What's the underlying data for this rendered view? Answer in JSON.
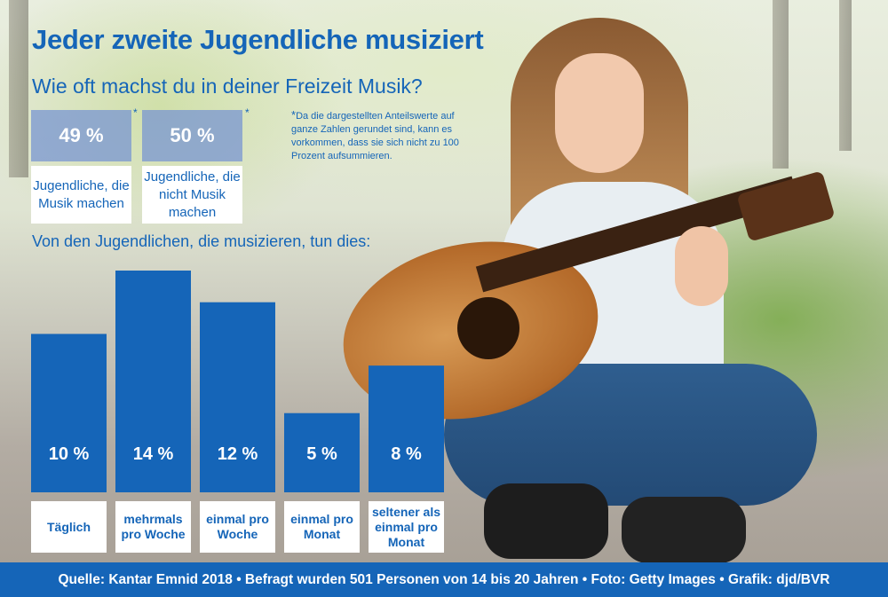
{
  "title": "Jeder zweite Jugendliche musiziert",
  "subtitle": "Wie oft machst du in deiner Freizeit Musik?",
  "summary": [
    {
      "value": "49 %",
      "label": "Jugendliche, die Musik machen",
      "star": "*"
    },
    {
      "value": "50 %",
      "label": "Jugendliche, die nicht Musik machen",
      "star": "*"
    }
  ],
  "footnote": {
    "star": "*",
    "text": "Da die dargestellten Anteilswerte auf ganze Zahlen gerundet sind, kann es vorkommen, dass sie sich nicht zu 100 Prozent aufsummieren."
  },
  "section_heading": "Von den Jugendlichen, die musizieren, tun dies:",
  "chart_data": {
    "type": "bar",
    "categories": [
      "Täglich",
      "mehrmals pro Woche",
      "einmal pro Woche",
      "einmal pro Monat",
      "seltener als einmal pro Monat"
    ],
    "values": [
      10,
      14,
      12,
      5,
      8
    ],
    "value_labels": [
      "10 %",
      "14 %",
      "12 %",
      "5 %",
      "8 %"
    ],
    "unit": "%",
    "ylim": [
      0,
      14
    ],
    "bar_color": "#1565b8",
    "grid": false
  },
  "footer": "Quelle: Kantar Emnid 2018 • Befragt wurden 501 Personen von 14 bis 20 Jahren • Foto: Getty Images • Grafik: djd/BVR",
  "colors": {
    "accent": "#1565b8",
    "box": "#7896d2"
  }
}
